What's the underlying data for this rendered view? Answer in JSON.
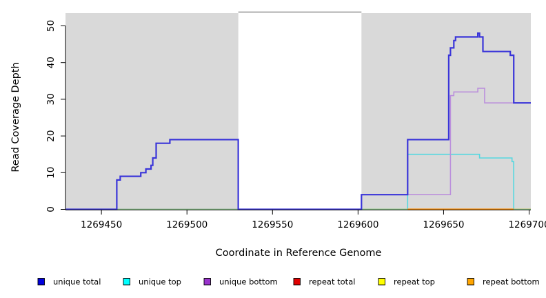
{
  "chart_data": {
    "type": "line",
    "subtype": "step-coverage",
    "title": "",
    "xlabel": "Coordinate in Reference Genome",
    "ylabel": "Read Coverage Depth",
    "xlim": [
      1269429,
      1269701
    ],
    "ylim": [
      0,
      54
    ],
    "grid": false,
    "x_ticks": [
      {
        "value": 1269450,
        "label": "1269450"
      },
      {
        "value": 1269500,
        "label": "1269500"
      },
      {
        "value": 1269550,
        "label": "1269550"
      },
      {
        "value": 1269600,
        "label": "1269600"
      },
      {
        "value": 1269650,
        "label": "1269650"
      },
      {
        "value": 1269700,
        "label": "1269700"
      }
    ],
    "y_ticks": [
      {
        "value": 0,
        "label": "0"
      },
      {
        "value": 10,
        "label": "10"
      },
      {
        "value": 20,
        "label": "20"
      },
      {
        "value": 30,
        "label": "30"
      },
      {
        "value": 40,
        "label": "40"
      },
      {
        "value": 50,
        "label": "50"
      }
    ],
    "shaded_regions": [
      {
        "from": 1269429,
        "to": 1269530,
        "color": "#d9d9d9"
      },
      {
        "from": 1269602,
        "to": 1269701,
        "color": "#d9d9d9"
      }
    ],
    "gap_region": {
      "from": 1269530,
      "to": 1269602,
      "top_line_color": "#8f8f8f"
    },
    "series": [
      {
        "name": "repeat total",
        "line_color": "#e00000",
        "width": 1.4,
        "points": [
          [
            1269429,
            0
          ],
          [
            1269701,
            0
          ]
        ]
      },
      {
        "name": "repeat top",
        "line_color": "#ffff00",
        "width": 1.4,
        "points": [
          [
            1269429,
            0
          ],
          [
            1269701,
            0
          ]
        ]
      },
      {
        "name": "unique top",
        "line_color": "#55d8e0",
        "width": 1.6,
        "points": [
          [
            1269429,
            0
          ],
          [
            1269629,
            15
          ],
          [
            1269671,
            14
          ],
          [
            1269690,
            13
          ],
          [
            1269691,
            0
          ]
        ]
      },
      {
        "name": "unique bottom",
        "line_color": "#bb8fdc",
        "width": 1.6,
        "points": [
          [
            1269429,
            0
          ],
          [
            1269602,
            4
          ],
          [
            1269654,
            31
          ],
          [
            1269656,
            32
          ],
          [
            1269670,
            33
          ],
          [
            1269674,
            29
          ],
          [
            1269701,
            29
          ]
        ]
      },
      {
        "name": "overlap baseline",
        "line_color": "#8ccf8c",
        "width": 1.4,
        "points": [
          [
            1269429,
            0
          ],
          [
            1269701,
            0
          ]
        ]
      },
      {
        "name": "repeat bottom",
        "line_color": "#ff8c00",
        "width": 2.2,
        "points": [
          [
            1269629,
            0
          ],
          [
            1269691,
            0
          ]
        ]
      },
      {
        "name": "unique total",
        "line_color": "#3a35d9",
        "width": 2.2,
        "points": [
          [
            1269429,
            0
          ],
          [
            1269459,
            8
          ],
          [
            1269461,
            9
          ],
          [
            1269473,
            10
          ],
          [
            1269476,
            11
          ],
          [
            1269479,
            12
          ],
          [
            1269480,
            14
          ],
          [
            1269482,
            18
          ],
          [
            1269490,
            19
          ],
          [
            1269530,
            0
          ],
          [
            1269602,
            4
          ],
          [
            1269629,
            19
          ],
          [
            1269653,
            42
          ],
          [
            1269654,
            44
          ],
          [
            1269656,
            46
          ],
          [
            1269657,
            47
          ],
          [
            1269670,
            48
          ],
          [
            1269671,
            47
          ],
          [
            1269673,
            43
          ],
          [
            1269689,
            42
          ],
          [
            1269691,
            29
          ],
          [
            1269701,
            29
          ]
        ]
      }
    ],
    "legend": {
      "position": "bottom",
      "items": [
        {
          "label": "unique total",
          "color": "#0000dd"
        },
        {
          "label": "unique top",
          "color": "#00ffff"
        },
        {
          "label": "unique bottom",
          "color": "#9933cc"
        },
        {
          "label": "repeat total",
          "color": "#e00000"
        },
        {
          "label": "repeat top",
          "color": "#ffff00"
        },
        {
          "label": "repeat bottom",
          "color": "#ffa500"
        }
      ]
    }
  }
}
